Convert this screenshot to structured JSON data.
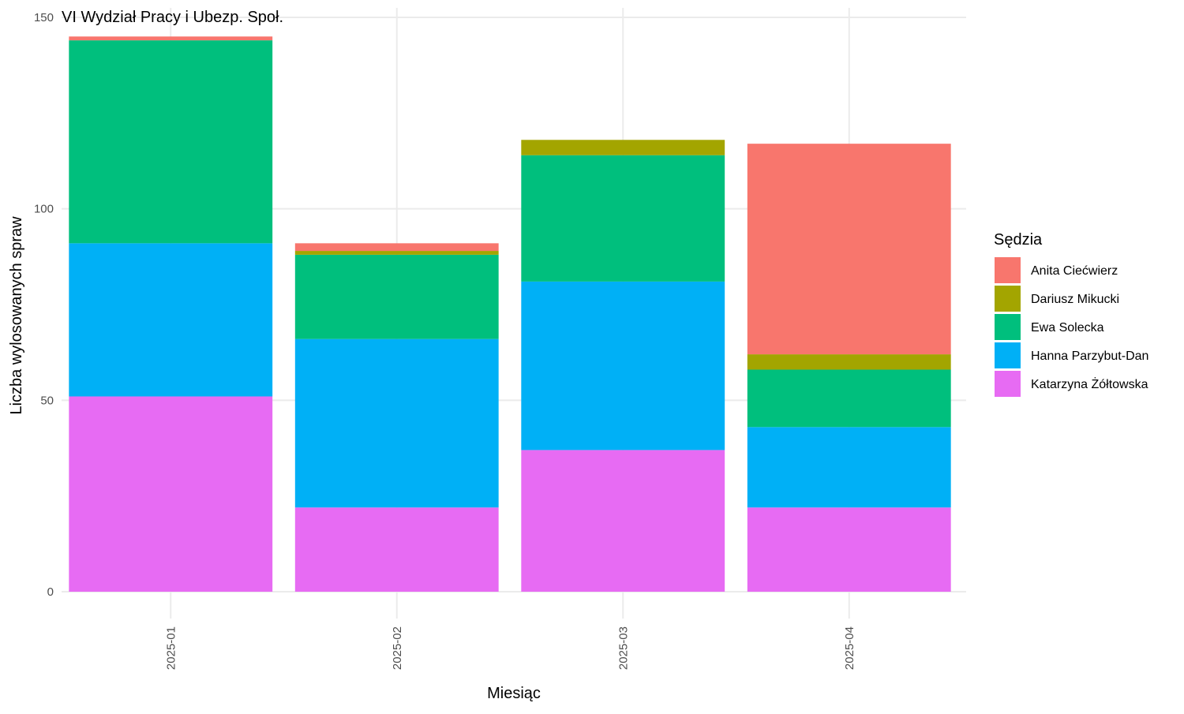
{
  "chart_data": {
    "type": "bar",
    "stacked": true,
    "title": "VI Wydział Pracy i Ubezp. Społ.",
    "xlabel": "Miesiąc",
    "ylabel": "Liczba wylosowanych spraw",
    "categories": [
      "2025-01",
      "2025-02",
      "2025-03",
      "2025-04"
    ],
    "ylim": [
      0,
      150
    ],
    "yticks": [
      0,
      50,
      100,
      150
    ],
    "grid": true,
    "legend": {
      "title": "Sędzia",
      "position": "right"
    },
    "series": [
      {
        "name": "Katarzyna Żółtowska",
        "color": "#E76BF3",
        "values": [
          51,
          22,
          37,
          22
        ]
      },
      {
        "name": "Hanna Parzybut-Dan",
        "color": "#00B0F6",
        "values": [
          40,
          44,
          44,
          21
        ]
      },
      {
        "name": "Ewa Solecka",
        "color": "#00BF7D",
        "values": [
          53,
          22,
          33,
          15
        ]
      },
      {
        "name": "Dariusz Mikucki",
        "color": "#A3A500",
        "values": [
          0,
          1,
          4,
          4
        ]
      },
      {
        "name": "Anita Ciećwierz",
        "color": "#F8766D",
        "values": [
          1,
          2,
          0,
          55
        ]
      }
    ],
    "legend_order": [
      "Anita Ciećwierz",
      "Dariusz Mikucki",
      "Ewa Solecka",
      "Hanna Parzybut-Dan",
      "Katarzyna Żółtowska"
    ]
  }
}
